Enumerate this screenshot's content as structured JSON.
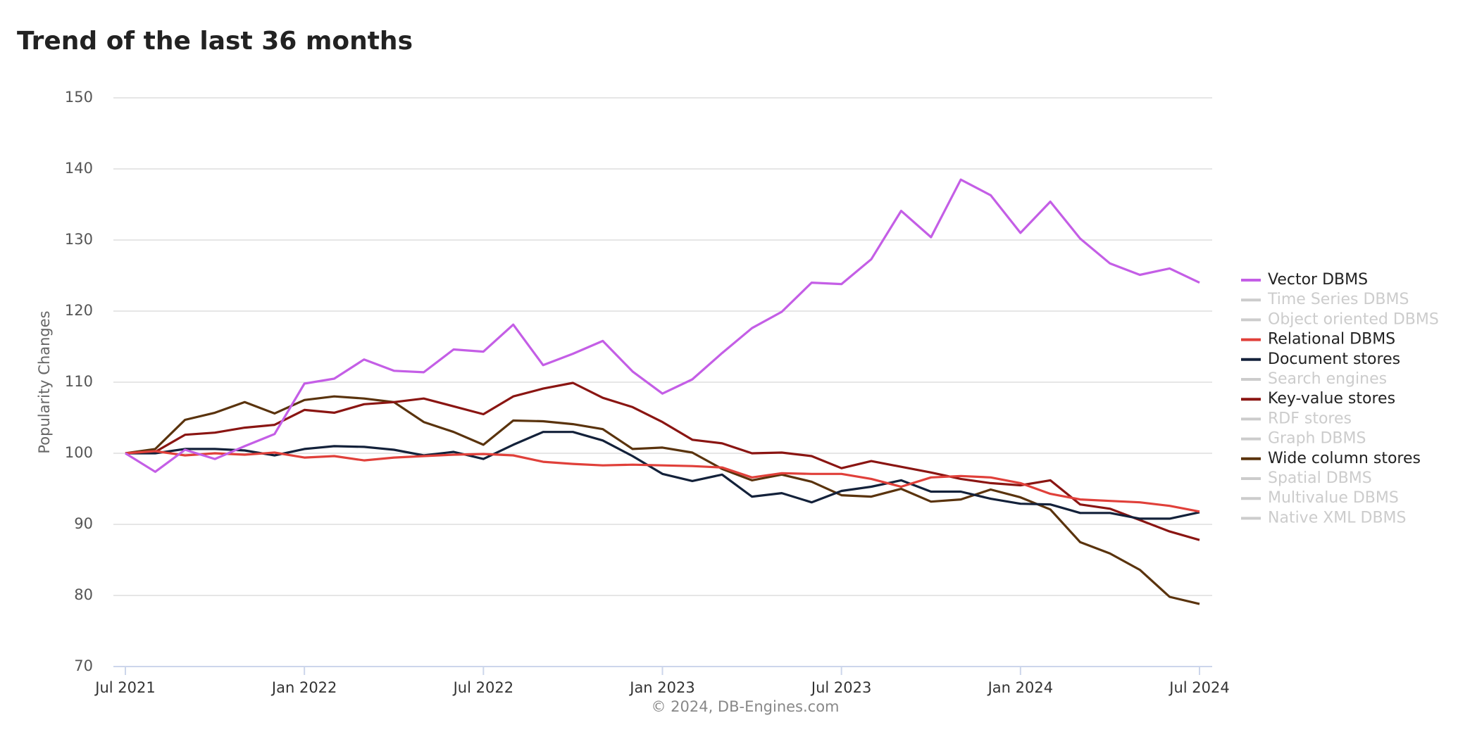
{
  "chart_data": {
    "type": "line",
    "title": "Trend of the last 36 months",
    "y_label": "Popularity Changes",
    "credits": "© 2024, DB-Engines.com",
    "categories": [
      "Jul 2021",
      null,
      null,
      null,
      null,
      null,
      "Jan 2022",
      null,
      null,
      null,
      null,
      null,
      "Jul 2022",
      null,
      null,
      null,
      null,
      null,
      "Jan 2023",
      null,
      null,
      null,
      null,
      null,
      "Jul 2023",
      null,
      null,
      null,
      null,
      null,
      "Jan 2024",
      null,
      null,
      null,
      null,
      null,
      "Jul 2024"
    ],
    "ylim": [
      70,
      150
    ],
    "yticks": [
      70,
      80,
      90,
      100,
      110,
      120,
      130,
      140,
      150
    ],
    "grid": true,
    "legend": "right",
    "series": [
      {
        "name": "Vector DBMS",
        "color": "#c45ee6",
        "visible": true,
        "values": [
          100,
          97.4,
          100.5,
          99.2,
          101,
          102.7,
          109.8,
          110.5,
          113.2,
          111.6,
          111.4,
          114.6,
          114.3,
          118.1,
          112.4,
          114.0,
          115.8,
          111.5,
          108.4,
          110.4,
          114.1,
          117.6,
          119.9,
          124.0,
          123.8,
          127.3,
          134.1,
          130.4,
          138.5,
          136.3,
          131.0,
          135.4,
          130.2,
          126.7,
          125.1,
          126.0,
          124.0
        ]
      },
      {
        "name": "Time Series DBMS",
        "color": "#cccccc",
        "visible": false
      },
      {
        "name": "Object oriented DBMS",
        "color": "#cccccc",
        "visible": false
      },
      {
        "name": "Relational DBMS",
        "color": "#e0403a",
        "visible": true,
        "values": [
          100,
          100.3,
          99.7,
          100.0,
          99.8,
          100.1,
          99.4,
          99.6,
          99.0,
          99.4,
          99.6,
          99.8,
          99.9,
          99.7,
          98.8,
          98.5,
          98.3,
          98.4,
          98.3,
          98.2,
          98.0,
          96.6,
          97.2,
          97.1,
          97.1,
          96.4,
          95.3,
          96.6,
          96.8,
          96.6,
          95.8,
          94.3,
          93.5,
          93.3,
          93.1,
          92.6,
          91.8
        ]
      },
      {
        "name": "Document stores",
        "color": "#13213a",
        "visible": true,
        "values": [
          100,
          100,
          100.6,
          100.6,
          100.4,
          99.7,
          100.6,
          101,
          100.9,
          100.5,
          99.7,
          100.2,
          99.2,
          101.2,
          103.0,
          103.0,
          101.8,
          99.6,
          97.1,
          96.1,
          97.0,
          93.9,
          94.4,
          93.1,
          94.7,
          95.3,
          96.2,
          94.6,
          94.6,
          93.6,
          92.9,
          92.8,
          91.6,
          91.6,
          90.8,
          90.8,
          91.7
        ]
      },
      {
        "name": "Search engines",
        "color": "#cccccc",
        "visible": false
      },
      {
        "name": "Key-value stores",
        "color": "#8a1512",
        "visible": true,
        "values": [
          100,
          100.2,
          102.6,
          102.9,
          103.6,
          104.0,
          106.1,
          105.7,
          106.9,
          107.2,
          107.7,
          106.6,
          105.5,
          108.0,
          109.1,
          109.9,
          107.8,
          106.5,
          104.4,
          101.9,
          101.4,
          100.0,
          100.1,
          99.6,
          97.9,
          98.9,
          98.1,
          97.3,
          96.4,
          95.8,
          95.5,
          96.2,
          92.8,
          92.2,
          90.6,
          89.0,
          87.8
        ]
      },
      {
        "name": "RDF stores",
        "color": "#cccccc",
        "visible": false
      },
      {
        "name": "Graph DBMS",
        "color": "#cccccc",
        "visible": false
      },
      {
        "name": "Wide column stores",
        "color": "#5a330d",
        "visible": true,
        "values": [
          100,
          100.6,
          104.7,
          105.7,
          107.2,
          105.6,
          107.5,
          108.0,
          107.7,
          107.2,
          104.4,
          103.0,
          101.2,
          104.6,
          104.5,
          104.1,
          103.4,
          100.6,
          100.8,
          100.1,
          97.8,
          96.2,
          97.0,
          96.0,
          94.1,
          93.9,
          95.0,
          93.2,
          93.5,
          94.9,
          93.8,
          92.1,
          87.5,
          85.9,
          83.6,
          79.8,
          78.8
        ]
      },
      {
        "name": "Spatial DBMS",
        "color": "#cccccc",
        "visible": false
      },
      {
        "name": "Multivalue DBMS",
        "color": "#cccccc",
        "visible": false
      },
      {
        "name": "Native XML DBMS",
        "color": "#cccccc",
        "visible": false
      }
    ]
  }
}
